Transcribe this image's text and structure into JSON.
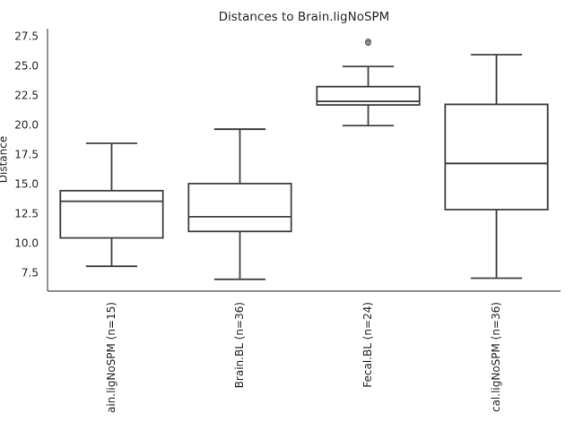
{
  "chart_data": {
    "type": "box",
    "title": "Distances to Brain.ligNoSPM",
    "y_label": "Distance",
    "categories": [
      "ain.ligNoSPM (n=15)",
      "Brain.BL (n=36)",
      "Fecal.BL (n=24)",
      "cal.ligNoSPM (n=36)"
    ],
    "boxes": [
      {
        "whislo": 8.1,
        "q1": 10.5,
        "med": 13.6,
        "q3": 14.5,
        "whishi": 18.5,
        "fliers": []
      },
      {
        "whislo": 7.0,
        "q1": 11.05,
        "med": 12.3,
        "q3": 15.1,
        "whishi": 19.7,
        "fliers": []
      },
      {
        "whislo": 20.0,
        "q1": 21.75,
        "med": 22.05,
        "q3": 23.3,
        "whishi": 25.0,
        "fliers": [
          27.1,
          27.0
        ]
      },
      {
        "whislo": 7.1,
        "q1": 12.9,
        "med": 16.8,
        "q3": 21.8,
        "whishi": 26.0,
        "fliers": []
      }
    ],
    "color": "#3f3f3f",
    "fill": "#ffffff",
    "ylim": [
      6.0,
      28.2
    ],
    "yticks": [
      7.5,
      {
        "value": 10,
        "label": "10.0"
      },
      12.5,
      {
        "value": 15,
        "label": "15.0"
      },
      17.5,
      {
        "value": 20,
        "label": "20.0"
      },
      22.5,
      {
        "value": 25,
        "label": "25.0"
      },
      27.5
    ],
    "grid": false
  }
}
